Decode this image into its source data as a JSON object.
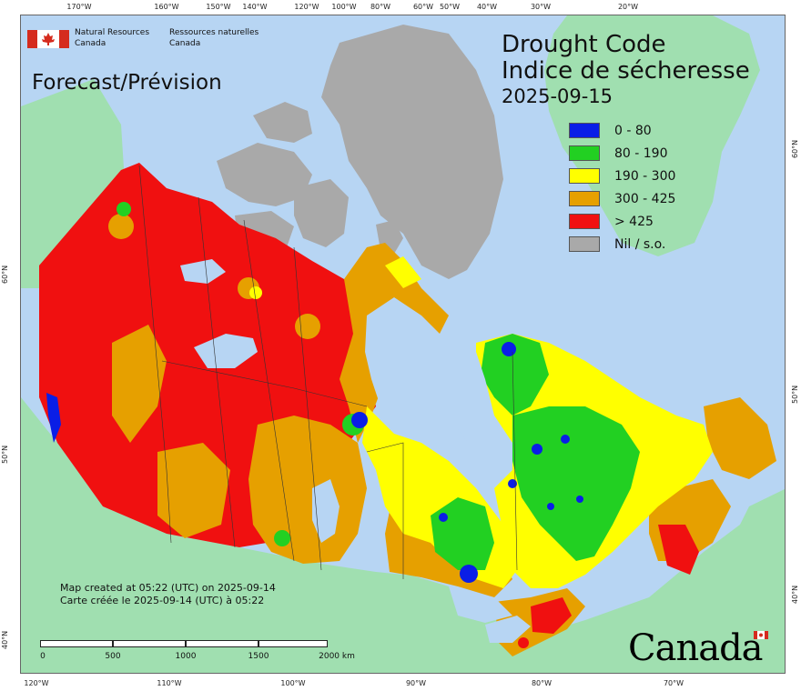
{
  "agency": {
    "name_en_line1": "Natural Resources",
    "name_en_line2": "Canada",
    "name_fr_line1": "Ressources naturelles",
    "name_fr_line2": "Canada"
  },
  "forecast_label": "Forecast/Prévision",
  "title": {
    "line1": "Drought Code",
    "line2": "Indice de sécheresse",
    "date": "2025-09-15"
  },
  "legend": [
    {
      "label": "0 - 80",
      "color": "#0a1ee6"
    },
    {
      "label": "80 - 190",
      "color": "#22d022"
    },
    {
      "label": "190 - 300",
      "color": "#ffff00"
    },
    {
      "label": "300 - 425",
      "color": "#e6a000"
    },
    {
      "label": "> 425",
      "color": "#f01010"
    },
    {
      "label": "Nil / s.o.",
      "color": "#a9a9a9"
    }
  ],
  "credit": {
    "line1": "Map created at 05:22 (UTC) on 2025-09-14",
    "line2": "Carte créée le 2025-09-14 (UTC) à 05:22"
  },
  "scale": {
    "labels": [
      "0",
      "500",
      "1000",
      "1500",
      "2000 km"
    ]
  },
  "wordmark": "Canada",
  "graticule": {
    "top": [
      {
        "label": "170°W",
        "pos": 87
      },
      {
        "label": "160°W",
        "pos": 183
      },
      {
        "label": "150°W",
        "pos": 240
      },
      {
        "label": "140°W",
        "pos": 280
      },
      {
        "label": "120°W",
        "pos": 337
      },
      {
        "label": "100°W",
        "pos": 378
      },
      {
        "label": "80°W",
        "pos": 418
      },
      {
        "label": "60°W",
        "pos": 465
      },
      {
        "label": "50°W",
        "pos": 494
      },
      {
        "label": "40°W",
        "pos": 535
      },
      {
        "label": "30°W",
        "pos": 594
      },
      {
        "label": "20°W",
        "pos": 690
      }
    ],
    "bottom": [
      {
        "label": "120°W",
        "pos": 40
      },
      {
        "label": "110°W",
        "pos": 186
      },
      {
        "label": "100°W",
        "pos": 322
      },
      {
        "label": "90°W",
        "pos": 457
      },
      {
        "label": "80°W",
        "pos": 595
      },
      {
        "label": "70°W",
        "pos": 740
      }
    ],
    "left": [
      {
        "label": "60°N",
        "pos": 300
      },
      {
        "label": "50°N",
        "pos": 498
      },
      {
        "label": "40°N",
        "pos": 702
      }
    ],
    "right": [
      {
        "label": "60°N",
        "pos": 162
      },
      {
        "label": "50°N",
        "pos": 432
      },
      {
        "label": "40°N",
        "pos": 652
      }
    ]
  }
}
